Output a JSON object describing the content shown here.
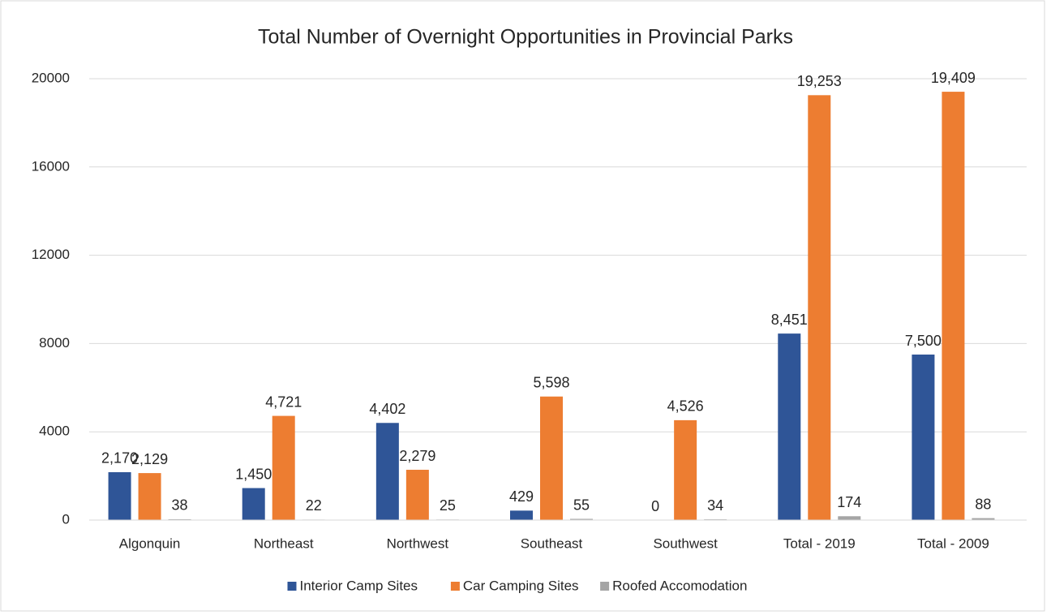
{
  "chart_data": {
    "type": "bar",
    "title": "Total Number of Overnight Opportunities in Provincial Parks",
    "categories": [
      "Algonquin",
      "Northeast",
      "Northwest",
      "Southeast",
      "Southwest",
      "Total - 2019",
      "Total - 2009"
    ],
    "series": [
      {
        "name": "Interior Camp Sites",
        "color": "#2f5597",
        "values": [
          2170,
          1450,
          4402,
          429,
          0,
          8451,
          7500
        ],
        "value_labels": [
          "2,170",
          "1,450",
          "4,402",
          "429",
          "0",
          "8,451",
          "7,500"
        ]
      },
      {
        "name": "Car Camping Sites",
        "color": "#ed7d31",
        "values": [
          2129,
          4721,
          2279,
          5598,
          4526,
          19253,
          19409
        ],
        "value_labels": [
          "2,129",
          "4,721",
          "2,279",
          "5,598",
          "4,526",
          "19,253",
          "19,409"
        ]
      },
      {
        "name": "Roofed Accomodation",
        "color": "#a5a5a5",
        "values": [
          38,
          22,
          25,
          55,
          34,
          174,
          88
        ]
      }
    ],
    "ylim": [
      0,
      20000
    ],
    "yticks": [
      0,
      4000,
      8000,
      12000,
      16000,
      20000
    ],
    "grid": true,
    "legend": "bottom"
  }
}
